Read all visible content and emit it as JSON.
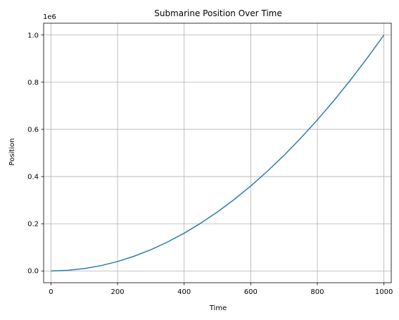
{
  "chart_data": {
    "type": "line",
    "title": "Submarine Position Over Time",
    "xlabel": "Time",
    "ylabel": "Position",
    "y_offset_label": "1e6",
    "xlim": [
      -22,
      1022
    ],
    "ylim": [
      -0.05,
      1.05
    ],
    "x_ticks": [
      0,
      200,
      400,
      600,
      800,
      1000
    ],
    "x_tick_labels": [
      "0",
      "200",
      "400",
      "600",
      "800",
      "1000"
    ],
    "y_ticks": [
      0.0,
      0.2,
      0.4,
      0.6,
      0.8,
      1.0
    ],
    "y_tick_labels": [
      "0.0",
      "0.2",
      "0.4",
      "0.6",
      "0.8",
      "1.0"
    ],
    "grid": true,
    "series": [
      {
        "color": "#2b7bb5",
        "x": [
          0,
          50,
          100,
          150,
          200,
          250,
          300,
          350,
          400,
          450,
          500,
          550,
          600,
          650,
          700,
          750,
          800,
          850,
          900,
          950,
          1000
        ],
        "y": [
          0.0,
          0.0025,
          0.01,
          0.0225,
          0.04,
          0.0625,
          0.09,
          0.1225,
          0.16,
          0.2025,
          0.25,
          0.3025,
          0.36,
          0.4225,
          0.49,
          0.5625,
          0.64,
          0.7225,
          0.81,
          0.9025,
          1.0
        ]
      }
    ]
  }
}
